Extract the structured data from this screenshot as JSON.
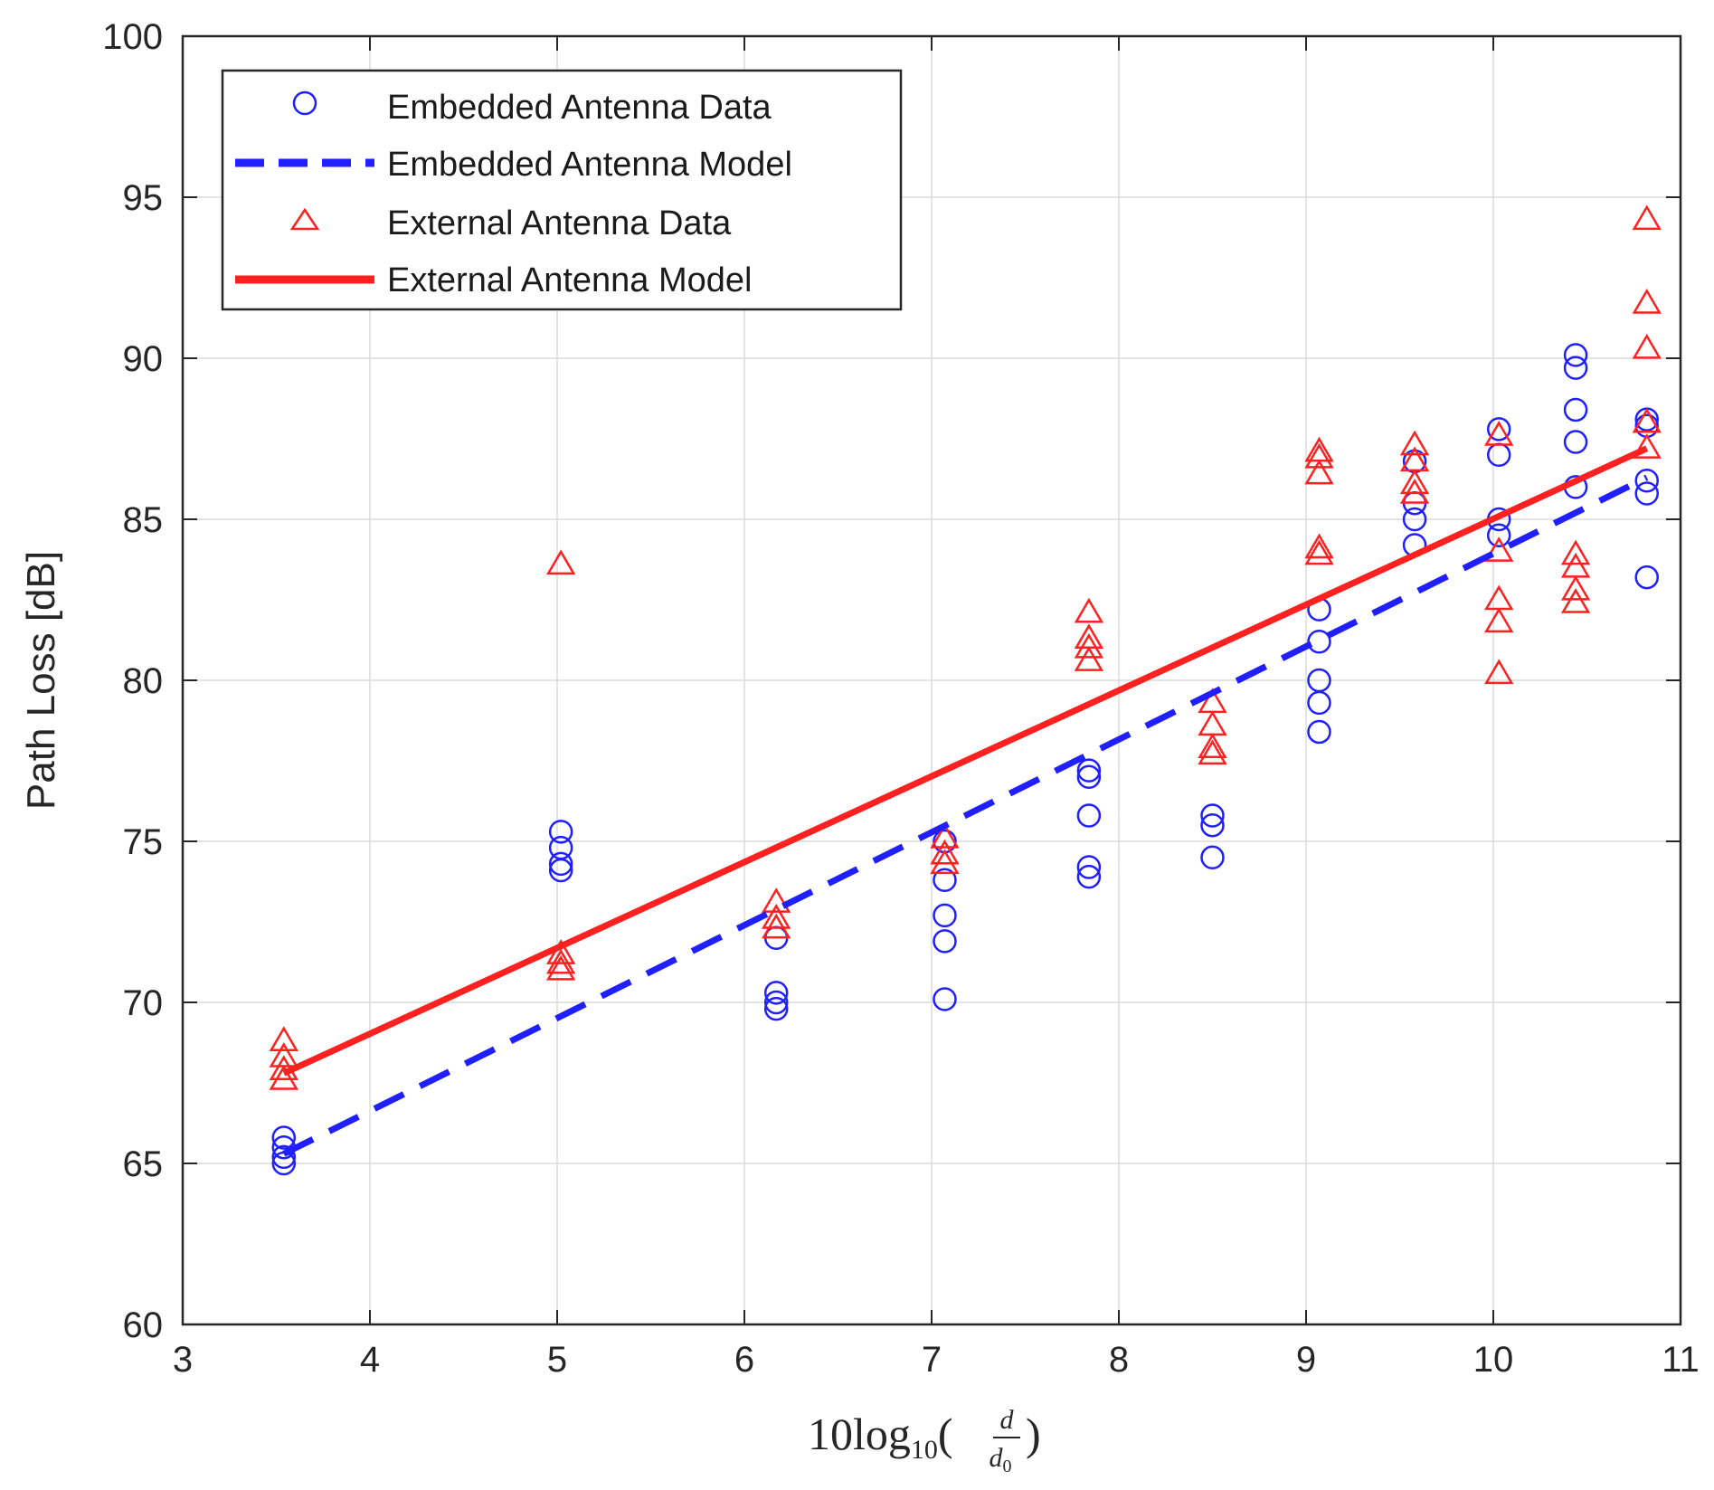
{
  "chart_data": {
    "type": "scatter",
    "title": "",
    "xlabel": {
      "base": "10log",
      "sub": "10",
      "open": "(",
      "num": "d",
      "den": "d",
      "den_sub": "0",
      "close": ")"
    },
    "ylabel": "Path Loss [dB]",
    "xlim": [
      3,
      11
    ],
    "ylim": [
      60,
      100
    ],
    "xticks": [
      3,
      4,
      5,
      6,
      7,
      8,
      9,
      10,
      11
    ],
    "yticks": [
      60,
      65,
      70,
      75,
      80,
      85,
      90,
      95,
      100
    ],
    "grid": true,
    "legend_position": "top-left",
    "series": [
      {
        "name": "Embedded Antenna Data",
        "kind": "scatter",
        "marker": "circle",
        "color": "#1f1fff",
        "points": [
          [
            3.54,
            65.8
          ],
          [
            3.54,
            65.5
          ],
          [
            3.54,
            65.2
          ],
          [
            3.54,
            65.0
          ],
          [
            5.02,
            75.3
          ],
          [
            5.02,
            74.8
          ],
          [
            5.02,
            74.3
          ],
          [
            5.02,
            74.1
          ],
          [
            6.17,
            72.0
          ],
          [
            6.17,
            70.3
          ],
          [
            6.17,
            70.0
          ],
          [
            6.17,
            69.8
          ],
          [
            7.07,
            75.0
          ],
          [
            7.07,
            73.8
          ],
          [
            7.07,
            72.7
          ],
          [
            7.07,
            71.9
          ],
          [
            7.07,
            70.1
          ],
          [
            7.84,
            77.2
          ],
          [
            7.84,
            77.0
          ],
          [
            7.84,
            75.8
          ],
          [
            7.84,
            74.2
          ],
          [
            7.84,
            73.9
          ],
          [
            8.5,
            75.8
          ],
          [
            8.5,
            75.5
          ],
          [
            8.5,
            74.5
          ],
          [
            9.07,
            82.2
          ],
          [
            9.07,
            81.2
          ],
          [
            9.07,
            80.0
          ],
          [
            9.07,
            79.3
          ],
          [
            9.07,
            78.4
          ],
          [
            9.58,
            86.8
          ],
          [
            9.58,
            85.5
          ],
          [
            9.58,
            85.0
          ],
          [
            9.58,
            84.2
          ],
          [
            10.03,
            87.8
          ],
          [
            10.03,
            87.0
          ],
          [
            10.03,
            85.0
          ],
          [
            10.03,
            84.5
          ],
          [
            10.44,
            90.1
          ],
          [
            10.44,
            89.7
          ],
          [
            10.44,
            88.4
          ],
          [
            10.44,
            87.4
          ],
          [
            10.44,
            86.0
          ],
          [
            10.82,
            88.1
          ],
          [
            10.82,
            87.9
          ],
          [
            10.82,
            86.2
          ],
          [
            10.82,
            85.8
          ],
          [
            10.82,
            83.2
          ]
        ]
      },
      {
        "name": "Embedded Antenna Model",
        "kind": "line",
        "style": "dashed",
        "color": "#1f1fff",
        "points": [
          [
            3.54,
            65.3
          ],
          [
            10.82,
            86.3
          ]
        ]
      },
      {
        "name": "External Antenna Data",
        "kind": "scatter",
        "marker": "triangle",
        "color": "#ff2020",
        "points": [
          [
            3.54,
            68.8
          ],
          [
            3.54,
            68.3
          ],
          [
            3.54,
            67.9
          ],
          [
            3.54,
            67.6
          ],
          [
            5.02,
            83.6
          ],
          [
            5.02,
            71.5
          ],
          [
            5.02,
            71.2
          ],
          [
            5.02,
            71.0
          ],
          [
            6.17,
            73.1
          ],
          [
            6.17,
            72.6
          ],
          [
            6.17,
            72.3
          ],
          [
            7.07,
            75.1
          ],
          [
            7.07,
            74.6
          ],
          [
            7.07,
            74.3
          ],
          [
            7.84,
            82.1
          ],
          [
            7.84,
            81.3
          ],
          [
            7.84,
            81.0
          ],
          [
            7.84,
            80.6
          ],
          [
            8.5,
            79.3
          ],
          [
            8.5,
            78.6
          ],
          [
            8.5,
            77.9
          ],
          [
            8.5,
            77.7
          ],
          [
            9.07,
            87.1
          ],
          [
            9.07,
            86.9
          ],
          [
            9.07,
            86.4
          ],
          [
            9.07,
            84.1
          ],
          [
            9.07,
            83.9
          ],
          [
            9.58,
            87.3
          ],
          [
            9.58,
            86.8
          ],
          [
            9.58,
            86.1
          ],
          [
            9.58,
            85.8
          ],
          [
            10.03,
            87.6
          ],
          [
            10.03,
            84.0
          ],
          [
            10.03,
            82.5
          ],
          [
            10.03,
            81.8
          ],
          [
            10.03,
            80.2
          ],
          [
            10.44,
            83.9
          ],
          [
            10.44,
            83.5
          ],
          [
            10.44,
            82.8
          ],
          [
            10.44,
            82.4
          ],
          [
            10.82,
            94.3
          ],
          [
            10.82,
            91.7
          ],
          [
            10.82,
            90.3
          ],
          [
            10.82,
            88.0
          ],
          [
            10.82,
            87.2
          ]
        ]
      },
      {
        "name": "External Antenna Model",
        "kind": "line",
        "style": "solid",
        "color": "#ff2020",
        "points": [
          [
            3.54,
            67.8
          ],
          [
            10.82,
            87.2
          ]
        ]
      }
    ]
  }
}
